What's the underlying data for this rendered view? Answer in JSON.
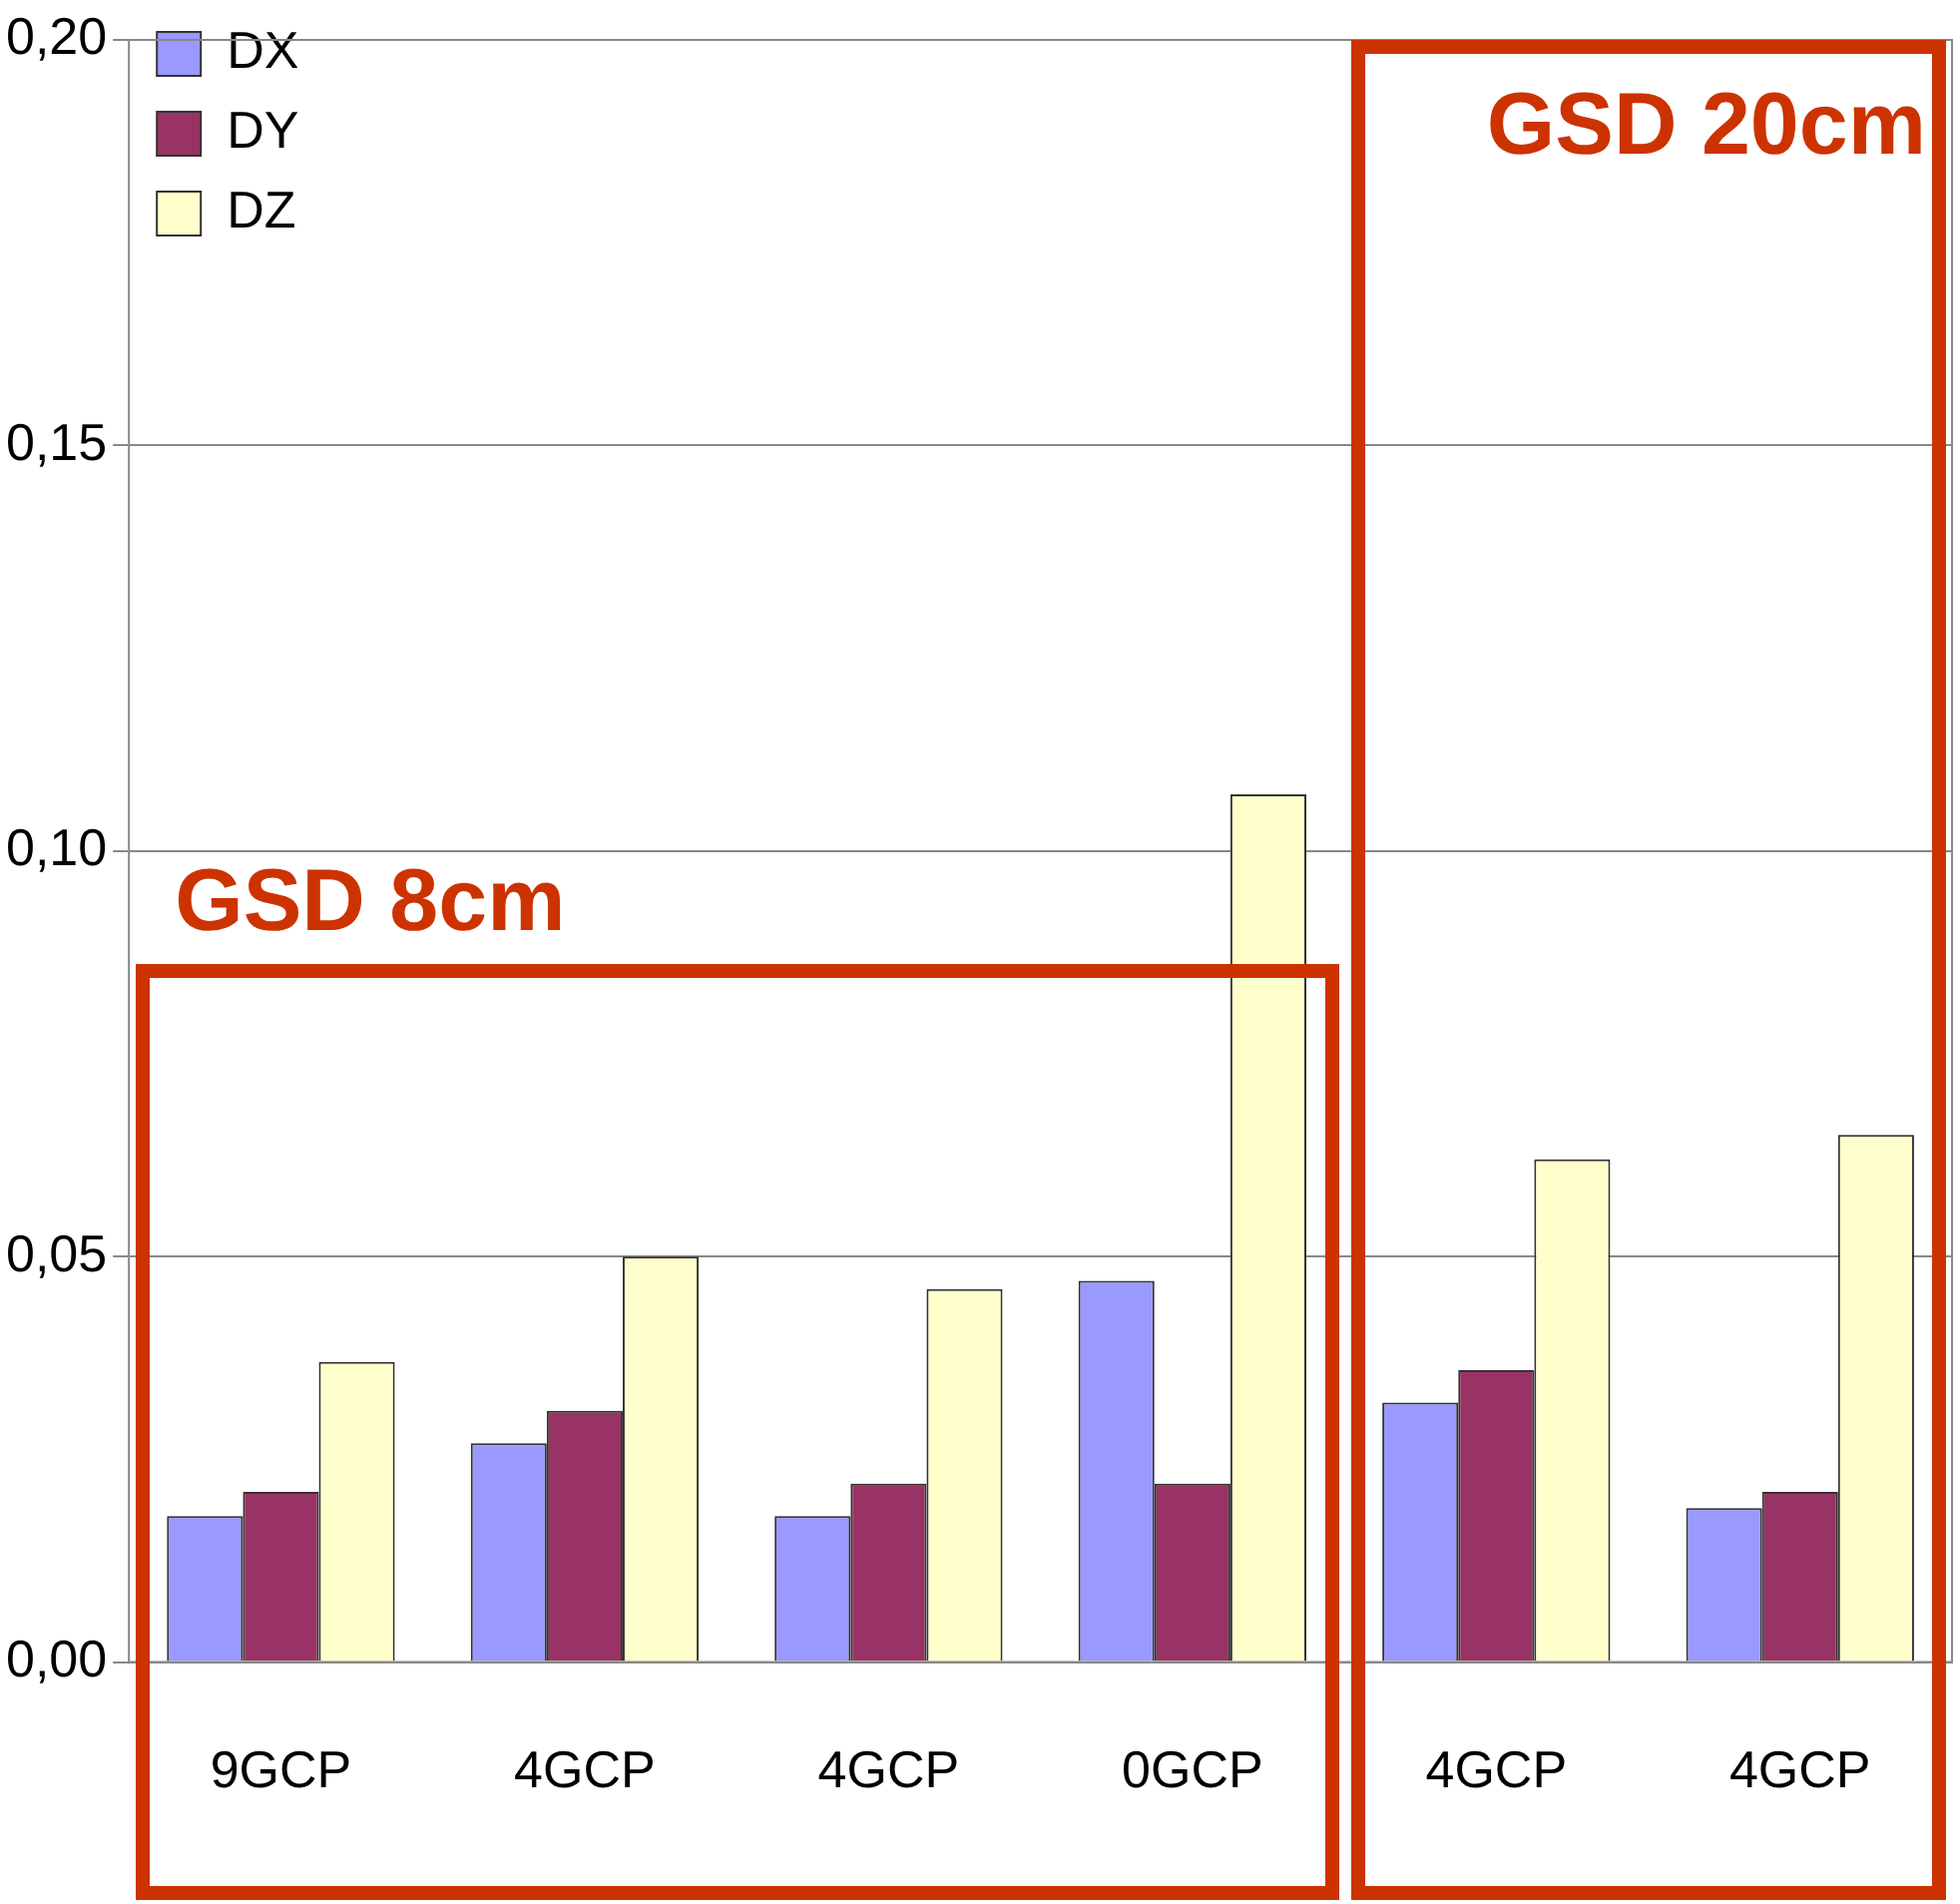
{
  "chart_data": {
    "type": "bar",
    "categories": [
      "9GCP",
      "4GCP",
      "4GCP",
      "0GCP",
      "4GCP",
      "4GCP"
    ],
    "series": [
      {
        "name": "DX",
        "color": "#9999ff",
        "values": [
          0.018,
          0.027,
          0.018,
          0.047,
          0.032,
          0.019
        ]
      },
      {
        "name": "DY",
        "color": "#993366",
        "values": [
          0.021,
          0.031,
          0.022,
          0.022,
          0.036,
          0.021
        ]
      },
      {
        "name": "DZ",
        "color": "#ffffcc",
        "values": [
          0.037,
          0.05,
          0.046,
          0.107,
          0.062,
          0.065
        ]
      }
    ],
    "ylim": [
      0,
      0.2
    ],
    "yticks": [
      {
        "value": 0,
        "label": "0,00"
      },
      {
        "value": 0.05,
        "label": "0,05"
      },
      {
        "value": 0.1,
        "label": "0,10"
      },
      {
        "value": 0.15,
        "label": "0,15"
      },
      {
        "value": 0.2,
        "label": "0,20"
      }
    ],
    "grid": "y",
    "legend": "top left",
    "annotations": [
      "GSD 8cm",
      "GSD 20cm"
    ]
  }
}
